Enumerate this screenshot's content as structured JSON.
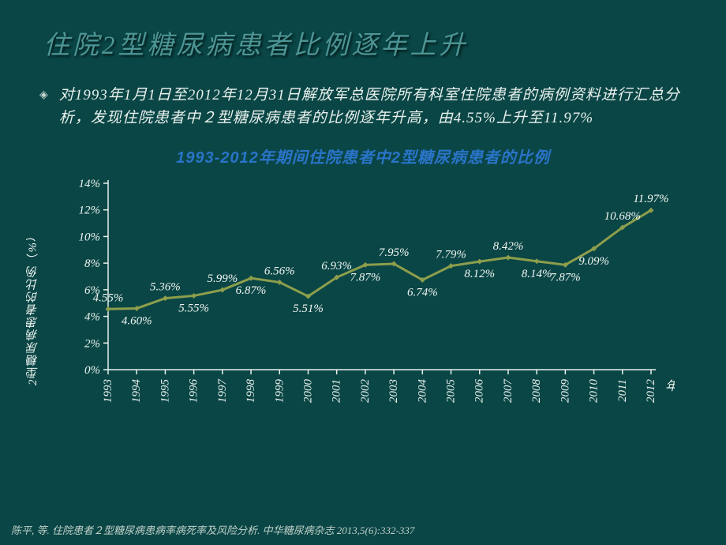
{
  "slide": {
    "title": "住院2型糖尿病患者比例逐年上升",
    "bullet_text": "对1993年1月1日至2012年12月31日解放军总医院所有科室住院患者的病例资料进行汇总分析，发现住院患者中２型糖尿病患者的比例逐年升高，由4.55%上升至11.97%",
    "citation": "陈平, 等. 住院患者２型糖尿病患病率病死率及风险分析. 中华糖尿病杂志 2013,5(6):332-337"
  },
  "chart": {
    "type": "line",
    "title": "1993-2012年期间住院患者中2型糖尿病患者的比例",
    "title_color": "#2a74c8",
    "background_color": "#0a4646",
    "line_color": "#8d9e4c",
    "marker_color": "#8d9e4c",
    "text_color": "#e8f0ec",
    "line_width": 3,
    "marker_size": 7,
    "y_axis": {
      "label": "2型糖尿病患者的比例（%）",
      "min": 0,
      "max": 14,
      "tick_step": 2,
      "ticks": [
        "0%",
        "2%",
        "4%",
        "6%",
        "8%",
        "10%",
        "12%",
        "14%"
      ]
    },
    "x_axis": {
      "unit_label": "年",
      "categories": [
        "1993",
        "1994",
        "1995",
        "1996",
        "1997",
        "1998",
        "1999",
        "2000",
        "2001",
        "2002",
        "2003",
        "2004",
        "2005",
        "2006",
        "2007",
        "2008",
        "2009",
        "2010",
        "2011",
        "2012"
      ]
    },
    "series": {
      "values": [
        4.55,
        4.6,
        5.36,
        5.55,
        5.99,
        6.87,
        6.56,
        5.51,
        6.93,
        7.87,
        7.95,
        6.74,
        7.79,
        8.12,
        8.42,
        8.14,
        7.87,
        9.09,
        10.68,
        11.97
      ],
      "labels": [
        "4.55%",
        "4.60%",
        "5.36%",
        "5.55%",
        "5.99%",
        "6.87%",
        "6.56%",
        "5.51%",
        "6.93%",
        "7.87%",
        "7.95%",
        "6.74%",
        "7.79%",
        "8.12%",
        "8.42%",
        "8.14%",
        "7.87%",
        "9.09%",
        "10.68%",
        "11.97%"
      ],
      "label_positions": [
        "above",
        "below",
        "above",
        "below",
        "above",
        "below",
        "above",
        "below",
        "above",
        "below",
        "above",
        "below",
        "above",
        "below",
        "above",
        "below",
        "below",
        "below",
        "above",
        "above"
      ]
    }
  }
}
